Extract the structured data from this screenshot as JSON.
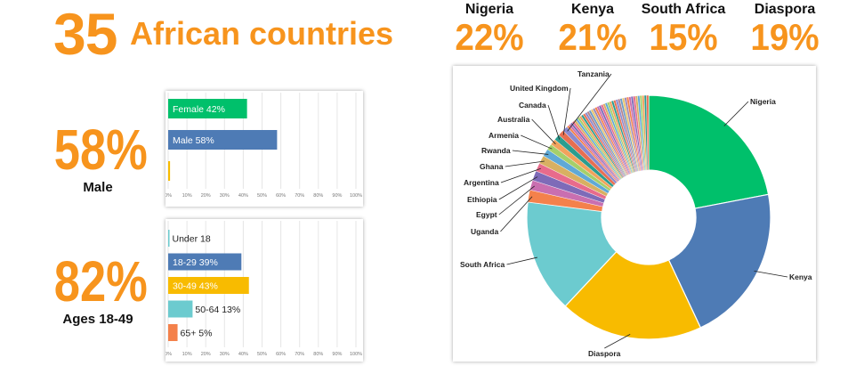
{
  "header": {
    "count": "35",
    "count_label": "African countries",
    "countries": [
      {
        "name": "Nigeria",
        "pct": "22%"
      },
      {
        "name": "Kenya",
        "pct": "21%"
      },
      {
        "name": "South Africa",
        "pct": "15%"
      },
      {
        "name": "Diaspora",
        "pct": "19%"
      }
    ]
  },
  "stats": {
    "gender": {
      "pct": "58%",
      "label": "Male"
    },
    "age": {
      "pct": "82%",
      "label": "Ages 18-49"
    }
  },
  "colors": {
    "accent": "#f7941d",
    "green": "#00c06b",
    "blue": "#4e7bb5",
    "yellow": "#f8bb00",
    "teal": "#6ccbcf",
    "orange": "#f4814b"
  },
  "chart_data": [
    {
      "type": "bar",
      "orientation": "horizontal",
      "categories": [
        "Female",
        "Male",
        ""
      ],
      "values": [
        42,
        58,
        1
      ],
      "bar_labels": [
        "Female  42%",
        "Male  58%",
        ""
      ],
      "colors": [
        "#00c06b",
        "#4e7bb5",
        "#f8bb00"
      ],
      "xlim": [
        0,
        100
      ],
      "xticks": [
        "0%",
        "10%",
        "20%",
        "30%",
        "40%",
        "50%",
        "60%",
        "70%",
        "80%",
        "90%",
        "100%"
      ]
    },
    {
      "type": "bar",
      "orientation": "horizontal",
      "categories": [
        "Under 18",
        "18-29",
        "30-49",
        "50-64",
        "65+"
      ],
      "values": [
        0.5,
        39,
        43,
        13,
        5
      ],
      "bar_labels": [
        "Under 18",
        "18-29  39%",
        "30-49  43%",
        "50-64  13%",
        "65+  5%"
      ],
      "colors": [
        "#6ccbcf",
        "#4e7bb5",
        "#f8bb00",
        "#6ccbcf",
        "#f4814b"
      ],
      "xlim": [
        0,
        100
      ],
      "xticks": [
        "0%",
        "10%",
        "20%",
        "30%",
        "40%",
        "50%",
        "60%",
        "70%",
        "80%",
        "90%",
        "100%"
      ]
    },
    {
      "type": "pie",
      "donut": true,
      "labels": [
        "Nigeria",
        "Kenya",
        "Diaspora",
        "South Africa",
        "Uganda",
        "Egypt",
        "Ethiopia",
        "Argentina",
        "Ghana",
        "Rwanda",
        "Armenia",
        "Australia",
        "Canada",
        "United Kingdom",
        "Tanzania"
      ],
      "values": [
        22,
        21,
        19,
        15,
        1.6,
        1.3,
        1.3,
        1.1,
        1.1,
        1.0,
        0.8,
        0.8,
        0.8,
        0.8,
        0.7
      ],
      "colors": [
        "#00c06b",
        "#4e7bb5",
        "#f8bb00",
        "#6ccbcf",
        "#f4814b",
        "#c96fb0",
        "#7e6bb8",
        "#e86b8c",
        "#d8b062",
        "#5fa9d6",
        "#a5cf6a",
        "#f2a25c",
        "#2a9d8f",
        "#e76f51",
        "#8a8ad0"
      ],
      "other_slices": 40
    }
  ]
}
